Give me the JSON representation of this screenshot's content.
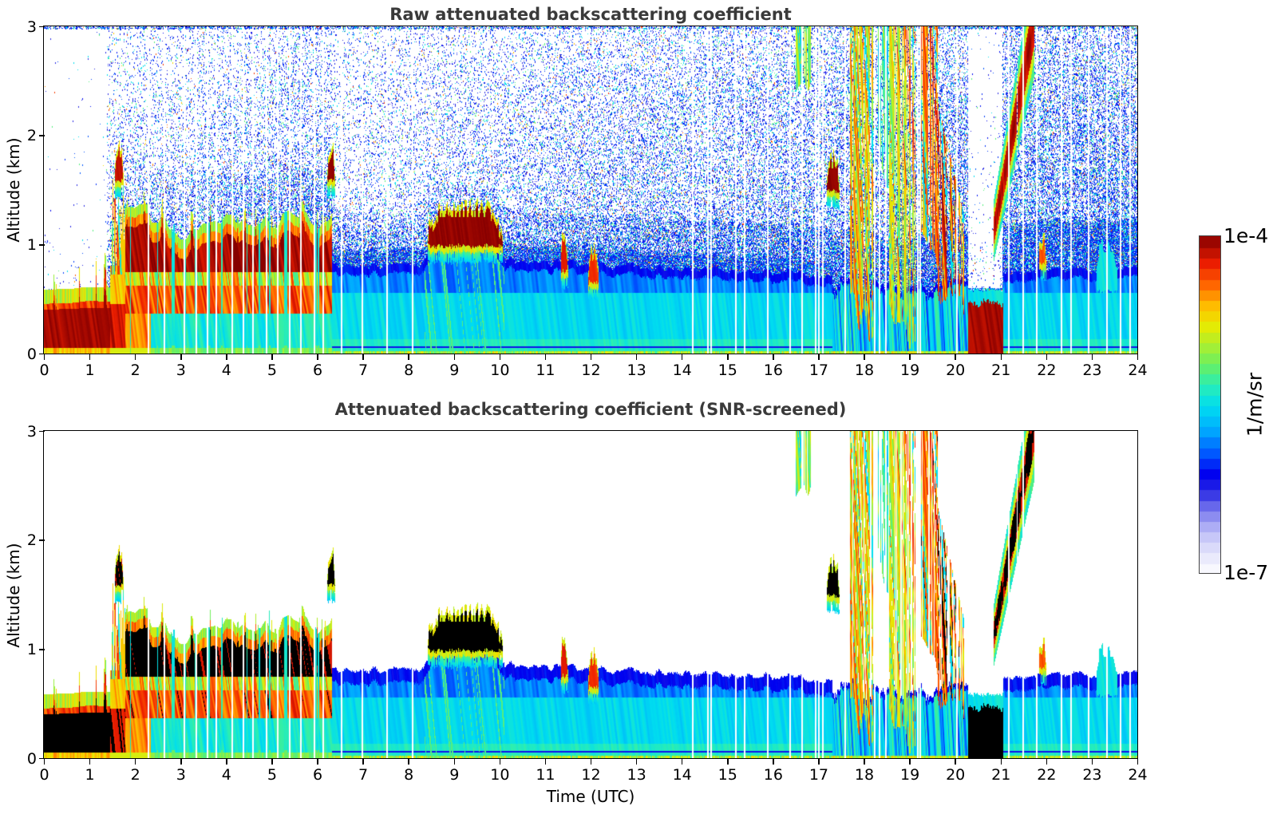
{
  "chart_data": {
    "type": "heatmap",
    "x_axis": {
      "label": "Time (UTC)",
      "min": 0,
      "max": 24,
      "ticks": [
        0,
        1,
        2,
        3,
        4,
        5,
        6,
        7,
        8,
        9,
        10,
        11,
        12,
        13,
        14,
        15,
        16,
        17,
        18,
        19,
        20,
        21,
        22,
        23,
        24
      ]
    },
    "y_axis": {
      "label": "Altitude (km)",
      "min": 0,
      "max": 3,
      "ticks": [
        0,
        1,
        2,
        3
      ]
    },
    "colorbar": {
      "label_top": "1e-4",
      "label_bottom": "1e-7",
      "unit": "1/m/sr",
      "scale": "log",
      "levels": 32
    },
    "colormap_stops": [
      [
        0.0,
        "#ffffff"
      ],
      [
        0.05,
        "#e9e9fc"
      ],
      [
        0.1,
        "#cfcff9"
      ],
      [
        0.15,
        "#a6a6f4"
      ],
      [
        0.2,
        "#6d6dec"
      ],
      [
        0.25,
        "#2626e2"
      ],
      [
        0.3,
        "#0000f0"
      ],
      [
        0.36,
        "#0057ff"
      ],
      [
        0.43,
        "#00acff"
      ],
      [
        0.5,
        "#00ddf0"
      ],
      [
        0.56,
        "#2aeeb4"
      ],
      [
        0.62,
        "#69ef62"
      ],
      [
        0.68,
        "#abef30"
      ],
      [
        0.74,
        "#eaea00"
      ],
      [
        0.8,
        "#ffb900"
      ],
      [
        0.86,
        "#ff6400"
      ],
      [
        0.92,
        "#ed1e00"
      ],
      [
        1.0,
        "#870000"
      ]
    ],
    "panels": [
      {
        "title": "Raw attenuated backscattering coefficient",
        "screened": false,
        "noise_speckle": true
      },
      {
        "title": "Attenuated backscattering coefficient (SNR-screened)",
        "screened": true,
        "noise_speckle": false
      }
    ],
    "boundary_layer": [
      {
        "t0": 0.0,
        "t1": 1.45,
        "style": "surface_red",
        "top": 0.58
      },
      {
        "t0": 1.45,
        "t1": 1.78,
        "style": "transition",
        "top": 0.8
      },
      {
        "t0": 1.78,
        "t1": 6.32,
        "style": "convective",
        "top": 1.22
      },
      {
        "t0": 6.32,
        "t1": 8.35,
        "style": "cyan",
        "top": 0.8,
        "top_end": 0.83
      },
      {
        "t0": 8.35,
        "t1": 10.1,
        "style": "cloudbase",
        "top": 1.0
      },
      {
        "t0": 10.1,
        "t1": 17.3,
        "style": "cyan",
        "top": 0.85,
        "top_end": 0.72
      },
      {
        "t0": 17.3,
        "t1": 20.28,
        "style": "rainy",
        "top": 0.64
      },
      {
        "t0": 20.28,
        "t1": 21.05,
        "style": "surface_red2",
        "top": 0.58
      },
      {
        "t0": 21.05,
        "t1": 24.0,
        "style": "cyan",
        "top": 0.75,
        "top_end": 0.78
      }
    ],
    "clouds": [
      {
        "t0": 1.56,
        "t1": 1.74,
        "z0": 1.55,
        "z1": 1.85,
        "v": 0.95
      },
      {
        "t0": 6.22,
        "t1": 6.38,
        "z0": 1.55,
        "z1": 1.8,
        "v": 0.99
      },
      {
        "t0": 8.42,
        "t1": 10.05,
        "z0": 0.95,
        "z1": 1.3,
        "v": 0.99
      },
      {
        "t0": 11.35,
        "t1": 11.5,
        "z0": 0.72,
        "z1": 0.97,
        "v": 0.93
      },
      {
        "t0": 11.95,
        "t1": 12.15,
        "z0": 0.62,
        "z1": 0.9,
        "v": 0.9
      },
      {
        "t0": 17.18,
        "t1": 17.45,
        "z0": 1.45,
        "z1": 1.75,
        "v": 0.99
      },
      {
        "t0": 21.48,
        "t1": 21.68,
        "z0": 2.68,
        "z1": 3.0,
        "v": 0.99
      },
      {
        "t0": 21.85,
        "t1": 21.98,
        "z0": 0.8,
        "z1": 1.0,
        "v": 0.88
      },
      {
        "t0": 23.1,
        "t1": 23.55,
        "z0": 0.68,
        "z1": 0.92,
        "v": 0.52
      }
    ],
    "rain_streaks": [
      {
        "t0": 16.5,
        "t1": 16.85,
        "zt0": 3.0,
        "zt1": 3.0,
        "zb0": 2.35,
        "zb1": 2.55,
        "v": 0.62
      },
      {
        "t0": 17.7,
        "t1": 18.18,
        "zt0": 3.0,
        "zt1": 3.0,
        "zb0": 0.5,
        "zb1": 0.15,
        "v": 0.78
      },
      {
        "t0": 18.3,
        "t1": 18.52,
        "zt0": 3.0,
        "zt1": 3.0,
        "zb0": 1.9,
        "zb1": 1.4,
        "v": 0.6
      },
      {
        "t0": 18.55,
        "t1": 19.12,
        "zt0": 3.0,
        "zt1": 3.0,
        "zb0": 0.3,
        "zb1": 0.05,
        "v": 0.76
      },
      {
        "t0": 19.25,
        "t1": 19.62,
        "zt0": 3.0,
        "zt1": 3.0,
        "zb0": 1.15,
        "zb1": 0.78,
        "v": 0.82
      },
      {
        "t0": 19.62,
        "t1": 20.18,
        "zt0": 2.3,
        "zt1": 1.3,
        "zb0": 0.6,
        "zb1": 0.35,
        "v": 0.85
      }
    ],
    "plume": {
      "t0": 20.85,
      "t1": 21.72,
      "z_start": 1.12,
      "z_end": 3.0,
      "halfwidth0": 0.28,
      "halfwidth1": 0.5,
      "v": 0.88
    },
    "dropout_times": [
      2.27,
      2.62,
      3.07,
      3.32,
      3.57,
      3.77,
      4.12,
      4.37,
      4.57,
      4.87,
      5.12,
      5.37,
      5.62,
      5.92,
      6.12,
      6.52,
      6.97,
      7.52,
      8.07,
      14.22,
      14.55,
      14.62,
      15.17,
      15.37,
      15.87,
      16.37,
      16.62,
      16.92,
      17.0,
      17.08,
      17.57,
      18.22,
      18.32,
      18.47,
      19.17,
      19.22,
      20.02,
      21.17,
      21.47,
      21.77,
      22.32,
      22.52,
      22.92,
      23.32,
      23.62,
      23.82
    ]
  }
}
